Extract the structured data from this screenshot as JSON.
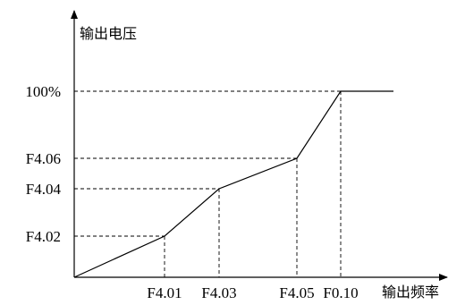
{
  "chart_data": {
    "type": "line",
    "title": "",
    "xlabel": "输出频率",
    "ylabel": "输出电压",
    "x_ticks": [
      "F4.01",
      "F4.03",
      "F4.05",
      "F0.10"
    ],
    "y_ticks": [
      "F4.02",
      "F4.04",
      "F4.06",
      "100%"
    ],
    "series": [
      {
        "points": [
          {
            "x": 0,
            "y": 0
          },
          {
            "x": "F4.01",
            "y": "F4.02"
          },
          {
            "x": "F4.03",
            "y": "F4.04"
          },
          {
            "x": "F4.05",
            "y": "F4.06"
          },
          {
            "x": "F0.10",
            "y": "100%"
          },
          {
            "x": "max",
            "y": "100%"
          }
        ]
      }
    ],
    "guides": "dashed",
    "grid": false,
    "legend": "none"
  }
}
